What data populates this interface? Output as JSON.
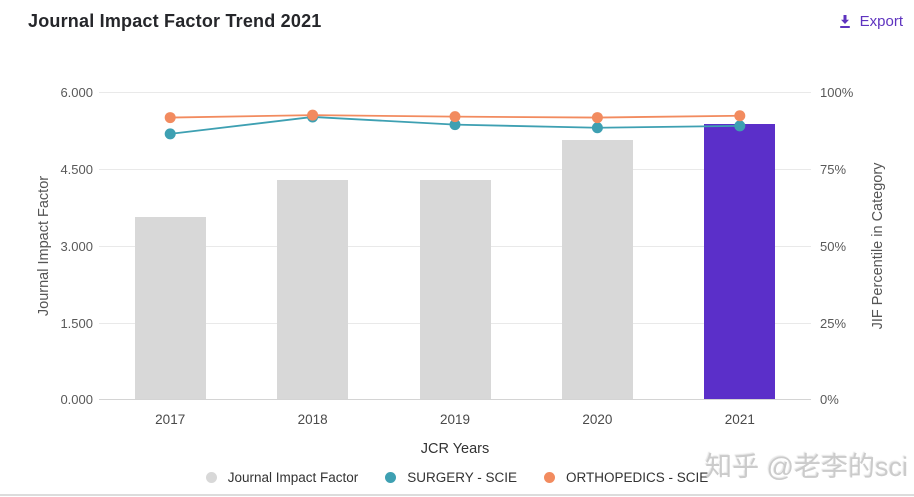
{
  "header": {
    "title": "Journal Impact Factor Trend 2021",
    "export_label": "Export"
  },
  "colors": {
    "accent": "#5e33bf",
    "bar_gray": "#d8d8d8",
    "bar_highlight": "#5b2fc9",
    "surgery": "#3ea0b2",
    "orthopedics": "#f28b5f",
    "grid": "#e9e9e9",
    "axis_line": "#d4d4d4",
    "tick_text": "#595959",
    "legend_text": "#333333",
    "watermark_text": "#cbcbcb"
  },
  "chart_data": {
    "type": "bar+line combo (bars on left axis, lines on right axis)",
    "categories": [
      "2017",
      "2018",
      "2019",
      "2020",
      "2021"
    ],
    "bar_series": {
      "name": "Journal Impact Factor",
      "values": [
        3.56,
        4.28,
        4.28,
        5.07,
        5.37
      ],
      "highlight_index": 4,
      "axis": "left"
    },
    "line_series": [
      {
        "name": "SURGERY - SCIE",
        "values": [
          86.4,
          91.9,
          89.4,
          88.4,
          89.0
        ],
        "color_key": "surgery",
        "axis": "right"
      },
      {
        "name": "ORTHOPEDICS - SCIE",
        "values": [
          91.7,
          92.5,
          92.0,
          91.7,
          92.3
        ],
        "color_key": "orthopedics",
        "axis": "right"
      }
    ],
    "left_axis": {
      "label": "Journal Impact Factor",
      "min": 0,
      "max": 6,
      "ticks": [
        "6.000",
        "4.500",
        "3.000",
        "1.500",
        "0.000"
      ]
    },
    "right_axis": {
      "label": "JIF Percentile in Category",
      "min": 0,
      "max": 100,
      "ticks": [
        "100%",
        "75%",
        "50%",
        "25%",
        "0%"
      ]
    },
    "xlabel": "JCR Years",
    "grid": "horizontal gridlines only",
    "legend_position": "bottom"
  },
  "legend": {
    "items": [
      {
        "label": "Journal Impact Factor",
        "color_key": "bar_gray"
      },
      {
        "label": "SURGERY - SCIE",
        "color_key": "surgery"
      },
      {
        "label": "ORTHOPEDICS - SCIE",
        "color_key": "orthopedics"
      }
    ]
  },
  "watermark": "知乎 @老李的sci"
}
